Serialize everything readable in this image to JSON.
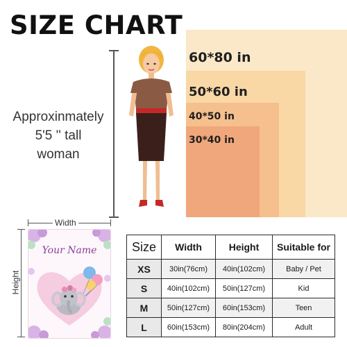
{
  "title": "SIZE CHART",
  "model_caption_line1": "Approxinmately",
  "model_caption_line2": "5'5 '' tall woman",
  "size_boxes": [
    {
      "label": "60*80 in",
      "color": "#fbe8c8"
    },
    {
      "label": "50*60 in",
      "color": "#f9d8a6"
    },
    {
      "label": "40*50 in",
      "color": "#f5c08d"
    },
    {
      "label": "30*40 in",
      "color": "#f0a77b"
    }
  ],
  "blanket": {
    "width_label": "Width",
    "height_label": "Height",
    "name_text": "Your Name",
    "accent_color": "#8a3f9a"
  },
  "table": {
    "headers": [
      "Size",
      "Width",
      "Height",
      "Suitable for"
    ],
    "rows": [
      [
        "XS",
        "30in(76cm)",
        "40in(102cm)",
        "Baby / Pet"
      ],
      [
        "S",
        "40in(102cm)",
        "50in(127cm)",
        "Kid"
      ],
      [
        "M",
        "50in(127cm)",
        "60in(153cm)",
        "Teen"
      ],
      [
        "L",
        "60in(153cm)",
        "80in(204cm)",
        "Adult"
      ]
    ]
  }
}
